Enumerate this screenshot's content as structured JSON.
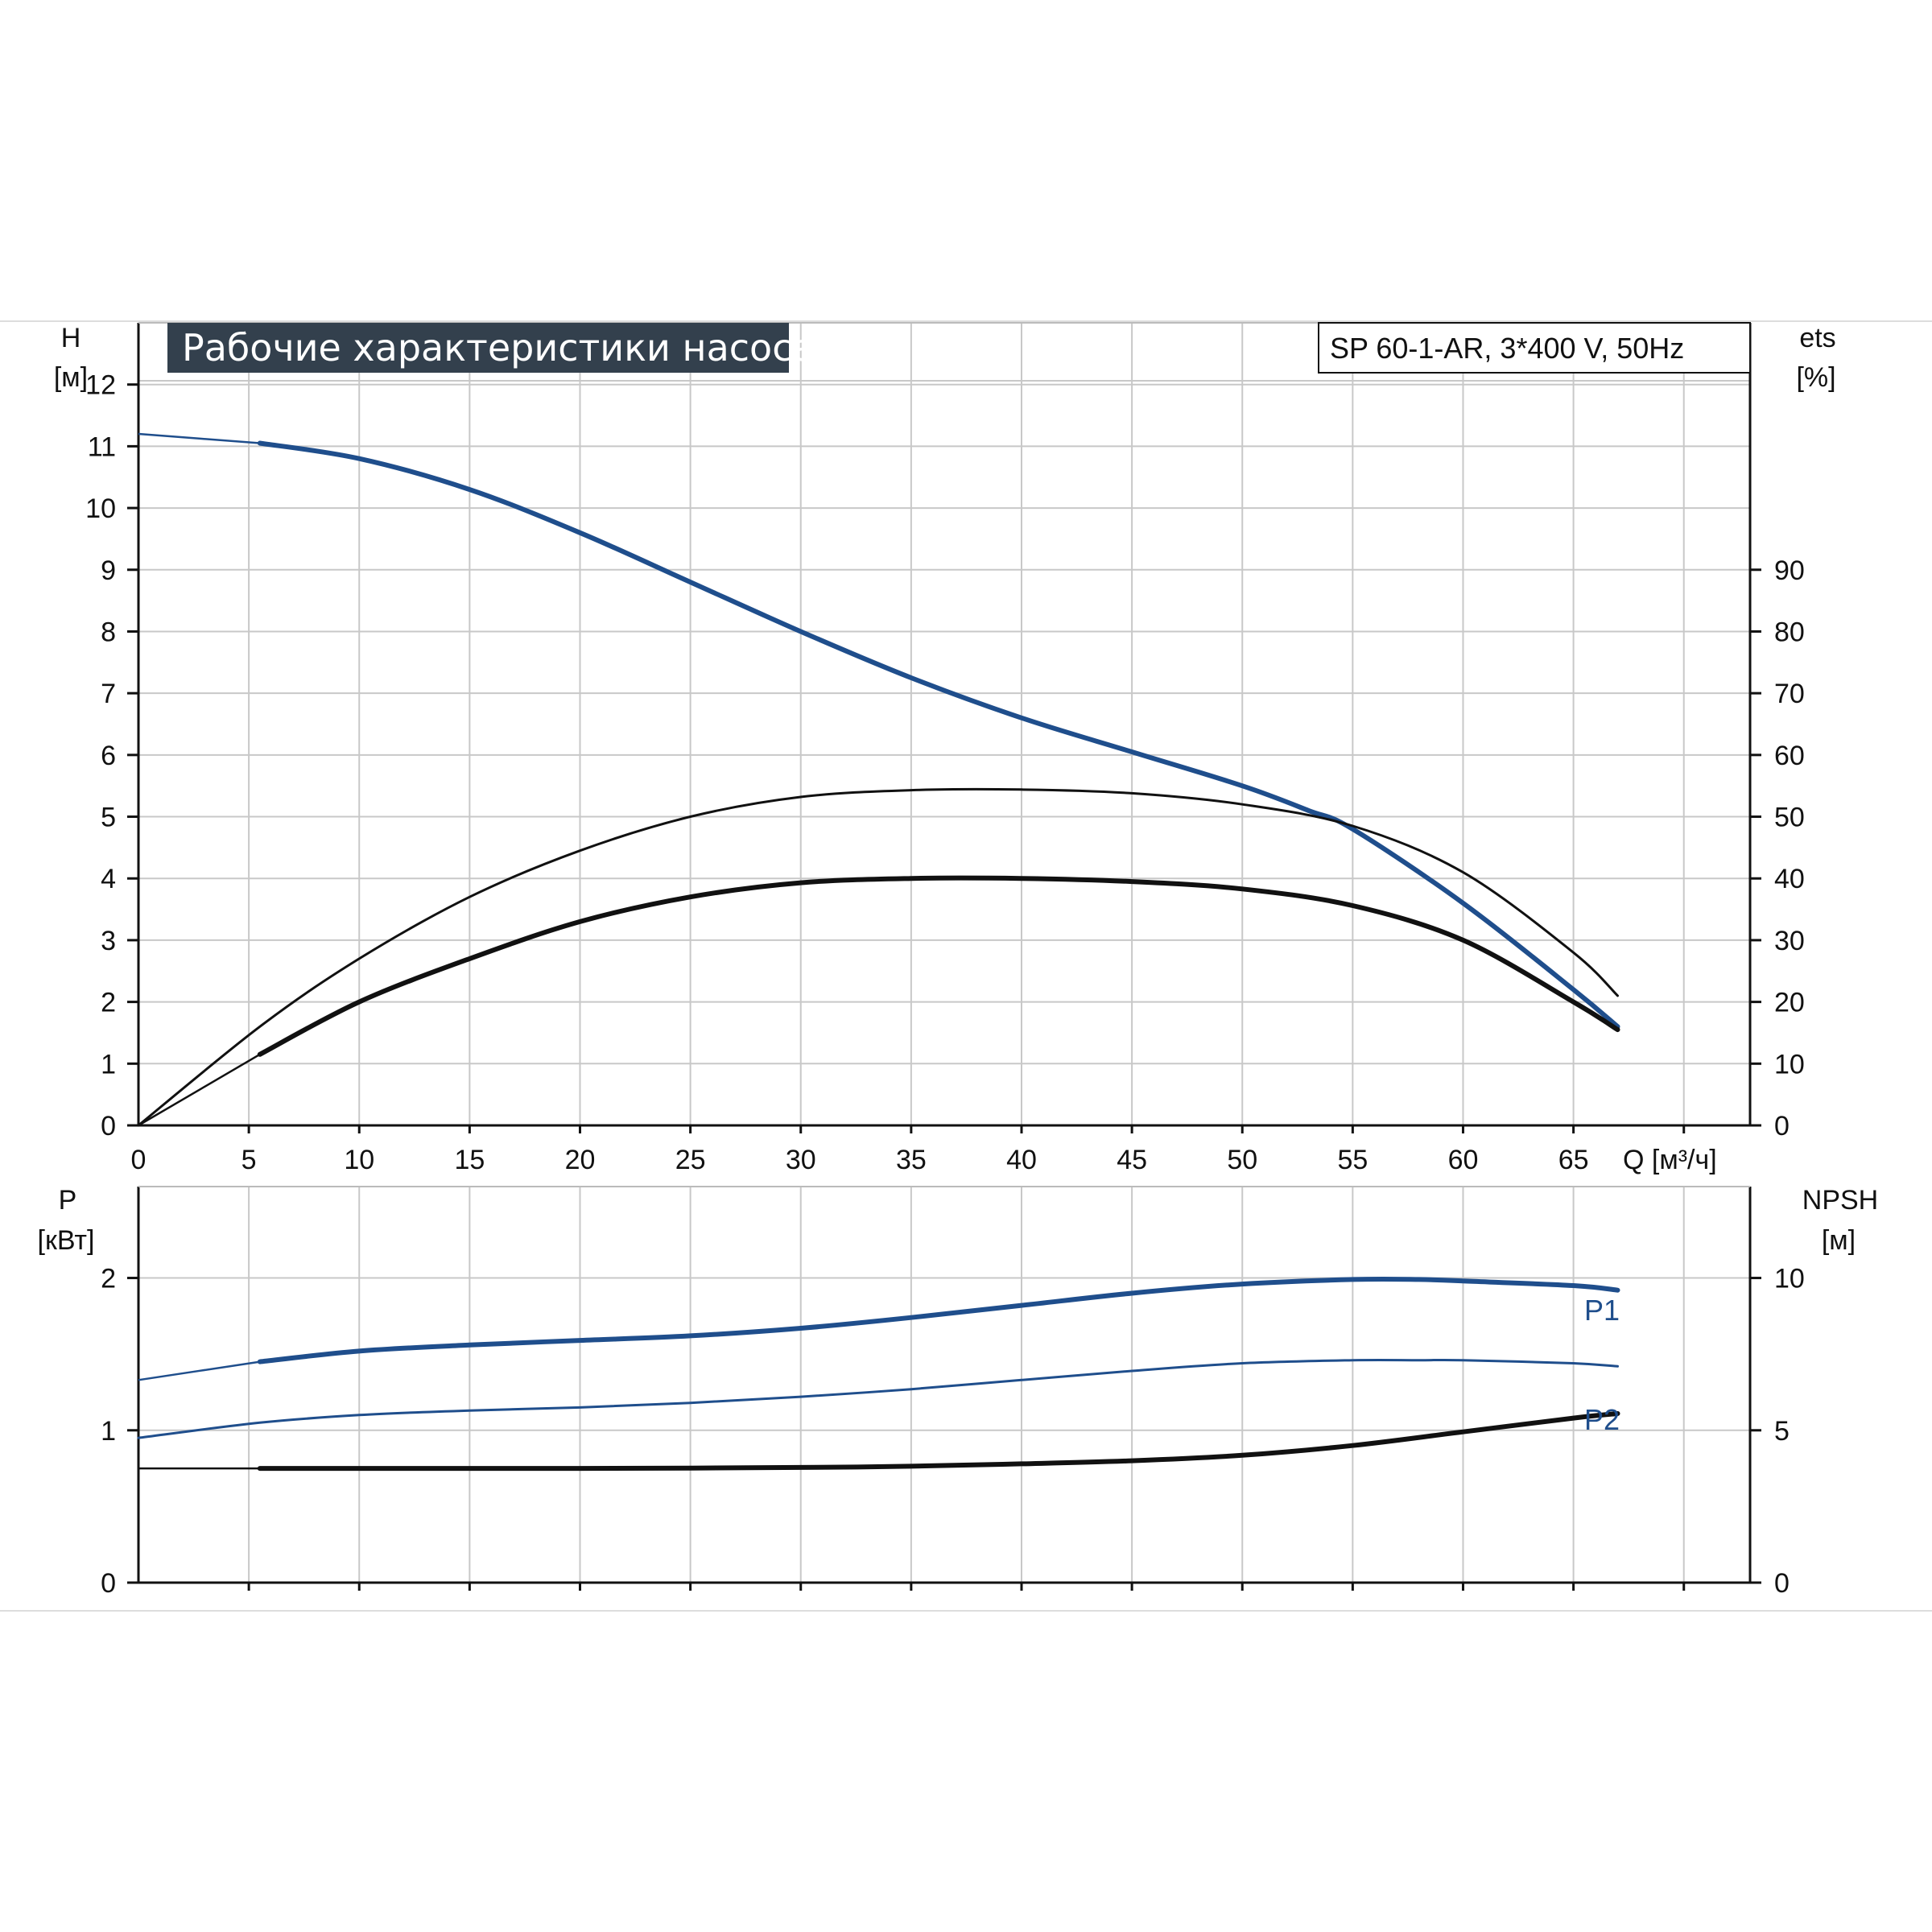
{
  "chart_data": [
    {
      "type": "line",
      "title": "Рабочие характеристики насоса",
      "subtitle": "SP 60-1-AR, 3*400 V, 50Hz",
      "xlabel": "Q [м³/ч]",
      "ylabel_left": "H",
      "ylabel_left_unit": "[м]",
      "ylabel_right": "ets",
      "ylabel_right_unit": "[%]",
      "xlim": [
        0,
        73
      ],
      "x_ticks": [
        0,
        5,
        10,
        15,
        20,
        25,
        30,
        35,
        40,
        45,
        50,
        55,
        60,
        65
      ],
      "ylim_left": [
        0,
        13
      ],
      "y_ticks_left": [
        0,
        1,
        2,
        3,
        4,
        5,
        6,
        7,
        8,
        9,
        10,
        11,
        12
      ],
      "ylim_right": [
        0,
        130
      ],
      "y_ticks_right": [
        0,
        10,
        20,
        30,
        40,
        50,
        60,
        70,
        80,
        90
      ],
      "grid": true,
      "series": [
        {
          "axis": "left",
          "color": "#1f4e8c",
          "style": "thick",
          "x": [
            0,
            5.5,
            10,
            15,
            20,
            25,
            30,
            35,
            40,
            45,
            50,
            53,
            55,
            60,
            65,
            67
          ],
          "y": [
            11.2,
            11.05,
            10.8,
            10.3,
            9.6,
            8.8,
            8.0,
            7.25,
            6.6,
            6.05,
            5.5,
            5.1,
            4.8,
            3.6,
            2.2,
            1.6
          ]
        },
        {
          "axis": "right",
          "color": "#111111",
          "style": "thin",
          "x": [
            0,
            5.5,
            10,
            15,
            20,
            25,
            30,
            35,
            40,
            45,
            50,
            55,
            60,
            65,
            67
          ],
          "y": [
            0,
            16,
            27,
            37,
            44.5,
            50,
            53.2,
            54.3,
            54.4,
            53.8,
            52,
            48.5,
            41,
            28,
            21
          ]
        },
        {
          "axis": "right",
          "color": "#111111",
          "style": "thick",
          "x": [
            0,
            5.5,
            10,
            15,
            20,
            25,
            30,
            35,
            40,
            45,
            50,
            55,
            60,
            65,
            67
          ],
          "y": [
            0,
            11.5,
            20,
            27,
            33,
            37,
            39.3,
            40,
            40,
            39.5,
            38.3,
            35.6,
            30,
            20,
            15.5
          ]
        }
      ]
    },
    {
      "type": "line",
      "xlim": [
        0,
        73
      ],
      "ylabel_left": "P",
      "ylabel_left_unit": "[кВт]",
      "ylabel_right": "NPSH",
      "ylabel_right_unit": "[м]",
      "ylim_left": [
        0,
        2.6
      ],
      "y_ticks_left": [
        0,
        1,
        2
      ],
      "ylim_right": [
        0,
        13
      ],
      "y_ticks_right": [
        0,
        5,
        10
      ],
      "grid": true,
      "series": [
        {
          "name": "P1",
          "axis": "left",
          "color": "#1f4e8c",
          "style": "thick",
          "x": [
            0,
            5.5,
            10,
            15,
            20,
            25,
            30,
            35,
            40,
            45,
            50,
            55,
            58,
            60,
            65,
            67
          ],
          "y": [
            1.33,
            1.45,
            1.52,
            1.56,
            1.59,
            1.62,
            1.67,
            1.74,
            1.82,
            1.9,
            1.96,
            1.99,
            1.99,
            1.98,
            1.95,
            1.92
          ]
        },
        {
          "name": "P2",
          "axis": "left",
          "color": "#1f4e8c",
          "style": "thin",
          "x": [
            0,
            5.5,
            10,
            15,
            20,
            25,
            30,
            35,
            40,
            45,
            50,
            55,
            58,
            60,
            65,
            67
          ],
          "y": [
            0.95,
            1.05,
            1.1,
            1.13,
            1.15,
            1.18,
            1.22,
            1.27,
            1.33,
            1.39,
            1.44,
            1.46,
            1.46,
            1.46,
            1.44,
            1.42
          ]
        },
        {
          "axis": "right",
          "color": "#111111",
          "style": "thick",
          "x": [
            0,
            5.5,
            10,
            15,
            20,
            25,
            30,
            35,
            40,
            45,
            50,
            55,
            60,
            65,
            67
          ],
          "y": [
            3.75,
            3.75,
            3.75,
            3.75,
            3.75,
            3.76,
            3.78,
            3.82,
            3.9,
            4.0,
            4.18,
            4.5,
            4.95,
            5.4,
            5.55
          ]
        }
      ]
    }
  ]
}
